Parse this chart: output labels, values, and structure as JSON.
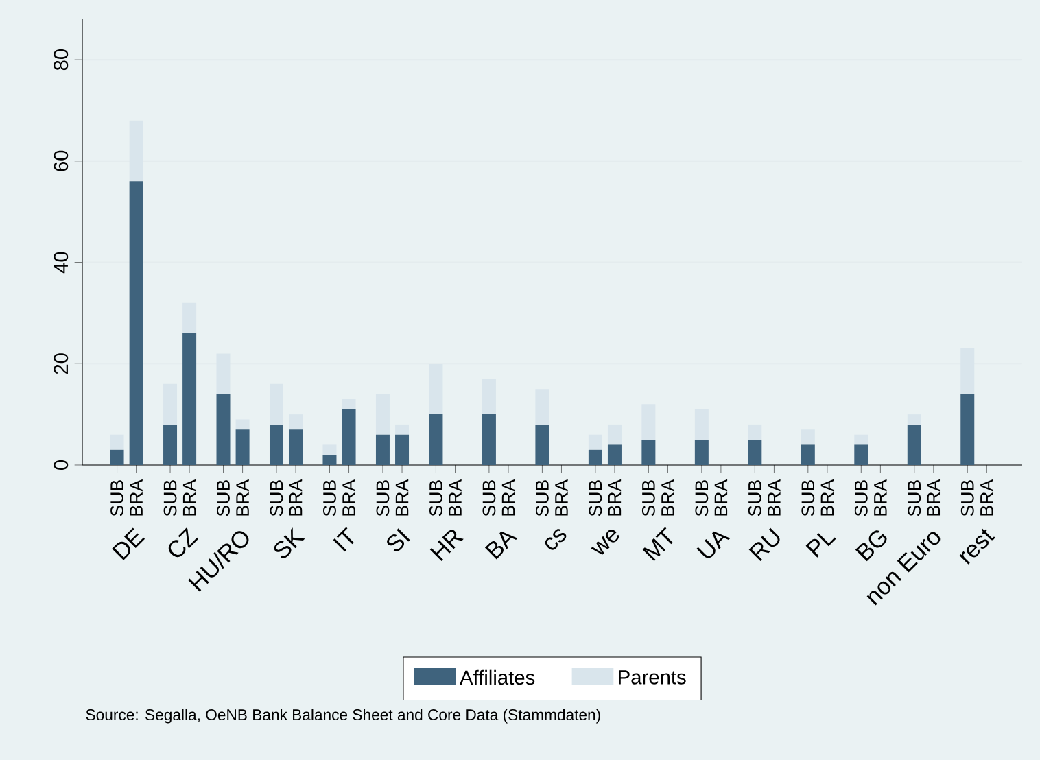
{
  "chart_data": {
    "type": "bar",
    "stacked": true,
    "categories": [
      "SUB",
      "BRA",
      "SUB",
      "BRA",
      "SUB",
      "BRA",
      "SUB",
      "BRA",
      "SUB",
      "BRA",
      "SUB",
      "BRA",
      "SUB",
      "BRA",
      "SUB",
      "BRA",
      "SUB",
      "BRA",
      "SUB",
      "BRA",
      "SUB",
      "BRA",
      "SUB",
      "BRA",
      "SUB",
      "BRA",
      "SUB",
      "BRA",
      "SUB",
      "BRA",
      "SUB",
      "BRA",
      "SUB",
      "BRA"
    ],
    "series": [
      {
        "name": "Affiliates",
        "color": "#3f637d",
        "values": [
          3,
          56,
          8,
          26,
          14,
          7,
          8,
          7,
          2,
          11,
          6,
          6,
          10,
          null,
          10,
          null,
          8,
          null,
          3,
          4,
          5,
          null,
          5,
          null,
          5,
          null,
          4,
          null,
          4,
          null,
          8,
          null,
          14,
          null
        ]
      },
      {
        "name": "Parents",
        "color": "#d9e5ec",
        "values": [
          3,
          12,
          8,
          6,
          8,
          2,
          8,
          3,
          2,
          2,
          8,
          2,
          10,
          null,
          7,
          null,
          7,
          null,
          3,
          4,
          7,
          null,
          6,
          null,
          3,
          null,
          3,
          null,
          2,
          null,
          2,
          null,
          9,
          null
        ]
      }
    ],
    "ylim": [
      0,
      88
    ],
    "yticks": [
      0,
      20,
      40,
      60,
      80
    ],
    "grid": "y",
    "legend": "bottom",
    "annotations": [
      "DE",
      "CZ",
      "HU/RO",
      "SK",
      "IT",
      "SI",
      "HR",
      "BA",
      "cs",
      "we",
      "MT",
      "UA",
      "RU",
      "PL",
      "BG",
      "non Euro",
      "rest",
      "Source: Segalla, OeNB Bank Balance Sheet and Core Data (Stammdaten)"
    ]
  }
}
